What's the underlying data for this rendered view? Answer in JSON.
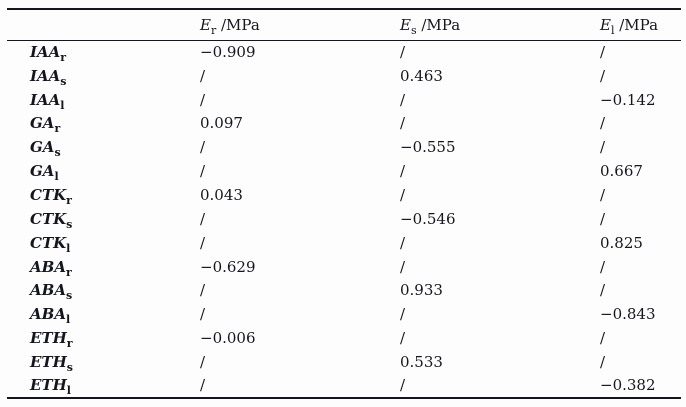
{
  "page": {
    "background": "#fdfdfd",
    "text_color": "#15151f"
  },
  "table": {
    "corner_label": "",
    "header": [
      {
        "base": "E",
        "sub": "r",
        "unit": " /MPa"
      },
      {
        "base": "E",
        "sub": "s",
        "unit": " /MPa"
      },
      {
        "base": "E",
        "sub": "l",
        "unit": " /MPa"
      }
    ],
    "rows": [
      {
        "name": "IAA",
        "sub": "r",
        "values": [
          "−0.909",
          "/",
          "/"
        ]
      },
      {
        "name": "IAA",
        "sub": "s",
        "values": [
          "/",
          "0.463",
          "/"
        ]
      },
      {
        "name": "IAA",
        "sub": "l",
        "values": [
          "/",
          "/",
          "−0.142"
        ]
      },
      {
        "name": "GA",
        "sub": "r",
        "values": [
          "0.097",
          "/",
          "/"
        ]
      },
      {
        "name": "GA",
        "sub": "s",
        "values": [
          "/",
          "−0.555",
          "/"
        ]
      },
      {
        "name": "GA",
        "sub": "l",
        "values": [
          "/",
          "/",
          "0.667"
        ]
      },
      {
        "name": "CTK",
        "sub": "r",
        "values": [
          "0.043",
          "/",
          "/"
        ]
      },
      {
        "name": "CTK",
        "sub": "s",
        "values": [
          "/",
          "−0.546",
          "/"
        ]
      },
      {
        "name": "CTK",
        "sub": "l",
        "values": [
          "/",
          "/",
          "0.825"
        ]
      },
      {
        "name": "ABA",
        "sub": "r",
        "values": [
          "−0.629",
          "/",
          "/"
        ]
      },
      {
        "name": "ABA",
        "sub": "s",
        "values": [
          "/",
          "0.933",
          "/"
        ]
      },
      {
        "name": "ABA",
        "sub": "l",
        "values": [
          "/",
          "/",
          "−0.843"
        ]
      },
      {
        "name": "ETH",
        "sub": "r",
        "values": [
          "−0.006",
          "/",
          "/"
        ]
      },
      {
        "name": "ETH",
        "sub": "s",
        "values": [
          "/",
          "0.533",
          "/"
        ]
      },
      {
        "name": "ETH",
        "sub": "l",
        "values": [
          "/",
          "/",
          "−0.382"
        ]
      }
    ]
  }
}
